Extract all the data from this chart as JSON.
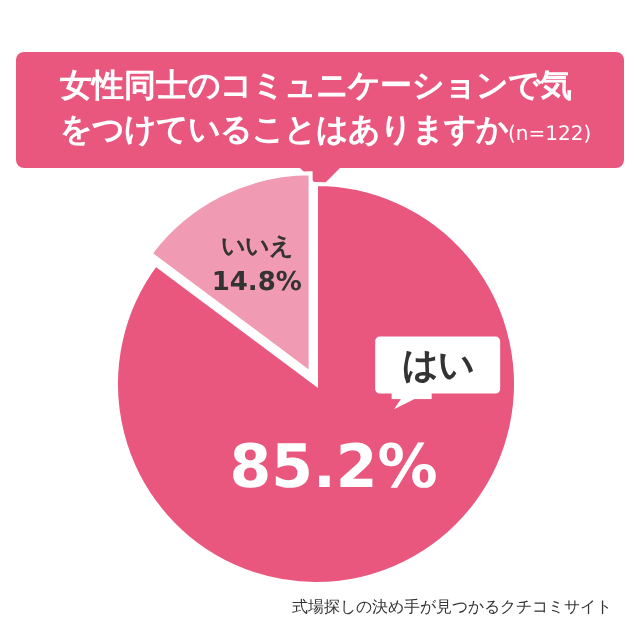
{
  "chart_data": {
    "type": "pie",
    "title": "女性同士のコミュニケーションで気をつけていることはありますか",
    "subtitle": "(n=122)",
    "categories": [
      "はい",
      "いいえ"
    ],
    "values": [
      85.2,
      14.8
    ],
    "value_labels": [
      "85.2%",
      "14.8%"
    ],
    "colors": [
      "#e9577f",
      "#f09ab3"
    ],
    "annotations": [
      "式場探しの決め手が見つかるクチコミサイト"
    ]
  }
}
